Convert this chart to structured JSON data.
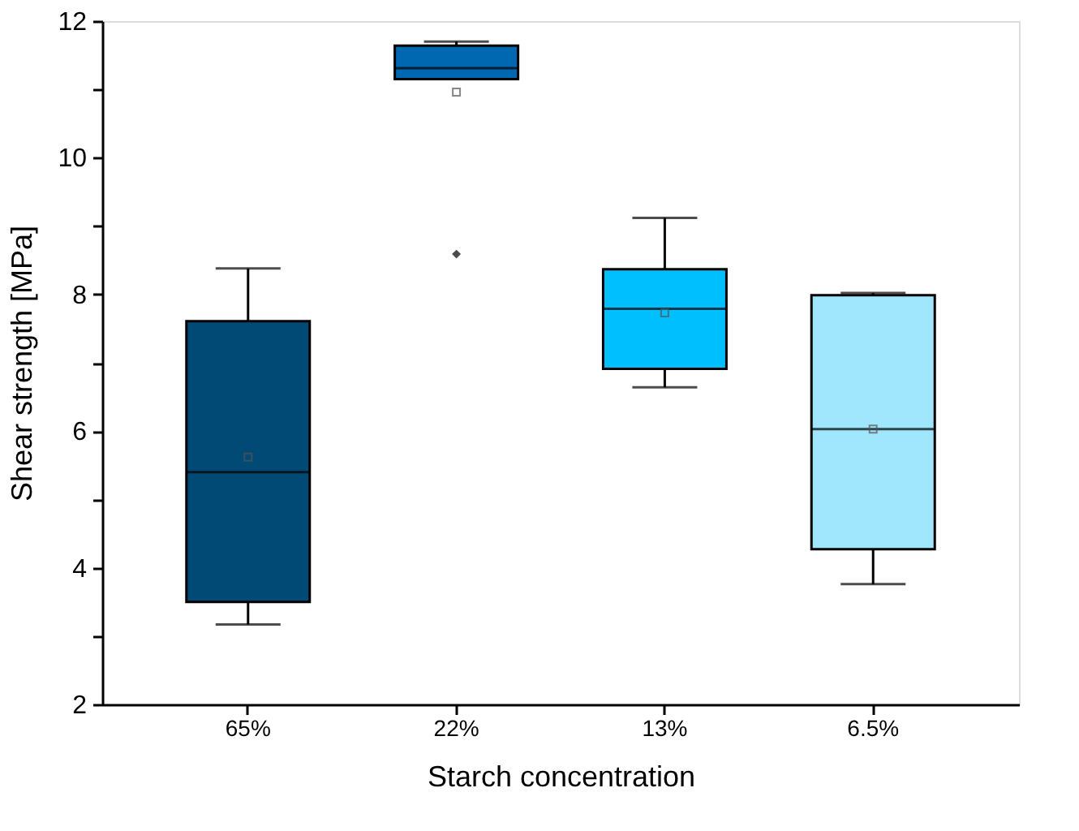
{
  "chart_data": {
    "type": "box",
    "xlabel": "Starch concentration",
    "ylabel": "Shear strength [MPa]",
    "categories": [
      "65%",
      "22%",
      "13%",
      "6.5%"
    ],
    "colors": [
      "#004a75",
      "#0067b1",
      "#00bfff",
      "#a0e6fc"
    ],
    "boxes": [
      {
        "low": 3.17,
        "q1": 3.5,
        "median": 5.4,
        "q3": 7.61,
        "high": 8.38,
        "mean": 5.62
      },
      {
        "low": 11.15,
        "q1": 11.15,
        "median": 11.31,
        "q3": 11.64,
        "high": 11.7,
        "mean": 10.96,
        "outliers": [
          8.59
        ]
      },
      {
        "low": 6.64,
        "q1": 6.91,
        "median": 7.79,
        "q3": 8.37,
        "high": 9.12,
        "mean": 7.73
      },
      {
        "low": 3.76,
        "q1": 4.27,
        "median": 6.03,
        "q3": 7.99,
        "high": 8.02,
        "mean": 6.03
      }
    ],
    "ylim": [
      2,
      12
    ],
    "yticks": [
      2,
      {
        "value": 3,
        "label": null
      },
      4,
      {
        "value": 5,
        "label": null
      },
      6,
      {
        "value": 7,
        "label": null
      },
      8,
      {
        "value": 9,
        "label": null
      },
      10,
      {
        "value": 11,
        "label": null
      },
      12
    ],
    "grid": false
  }
}
